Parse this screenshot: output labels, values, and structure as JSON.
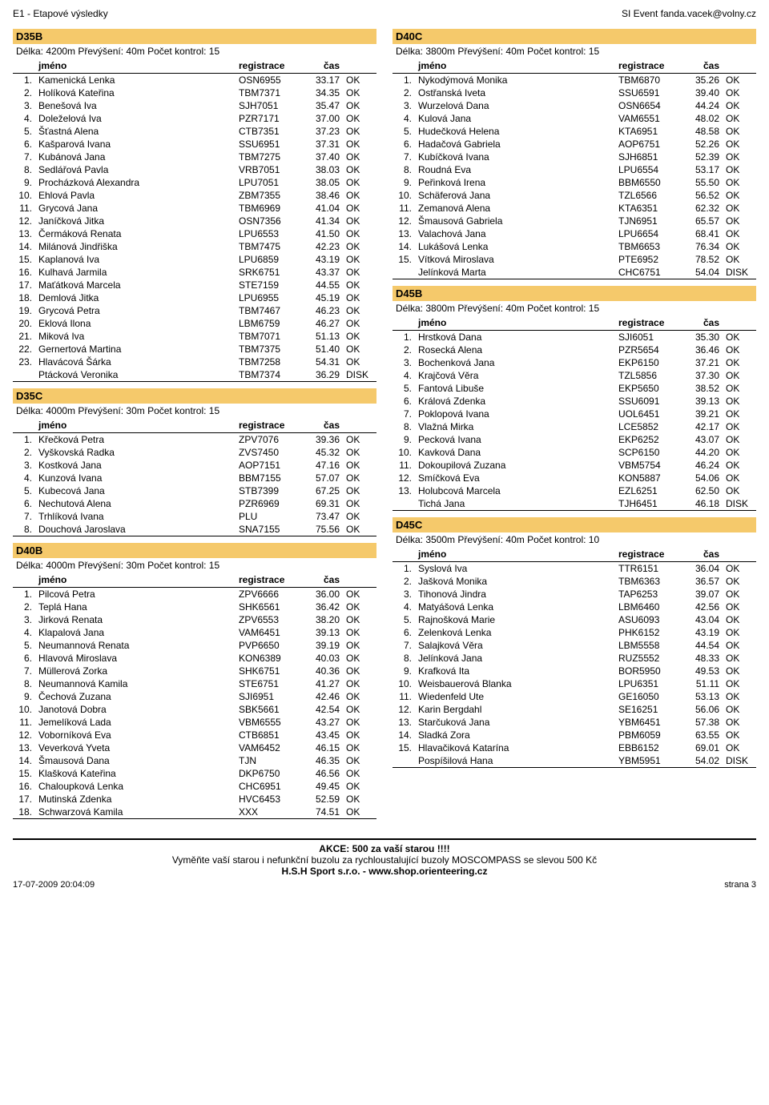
{
  "header": {
    "left": "E1 - Etapové výsledky",
    "right": "SI Event fanda.vacek@volny.cz"
  },
  "labels": {
    "name": "jméno",
    "reg": "registrace",
    "time": "čas"
  },
  "footer": {
    "line1": "AKCE: 500 za vaší starou !!!!",
    "line2": "Vyměňte vaší starou i nefunkční buzolu za rychloustalující buzoly MOSCOMPASS se slevou 500 Kč",
    "line3": "H.S.H Sport s.r.o. - www.shop.orienteering.cz",
    "stamp": "17-07-2009 20:04:09",
    "page": "strana 3"
  },
  "left_categories": [
    {
      "code": "D35B",
      "sub": "Délka: 4200m Převýšení: 40m Počet kontrol: 15",
      "rows": [
        {
          "r": "1.",
          "n": "Kamenická Lenka",
          "g": "OSN6955",
          "t": "33.17",
          "s": "OK"
        },
        {
          "r": "2.",
          "n": "Holíková Kateřina",
          "g": "TBM7371",
          "t": "34.35",
          "s": "OK"
        },
        {
          "r": "3.",
          "n": "Benešová Iva",
          "g": "SJH7051",
          "t": "35.47",
          "s": "OK"
        },
        {
          "r": "4.",
          "n": "Doleželová Iva",
          "g": "PZR7171",
          "t": "37.00",
          "s": "OK"
        },
        {
          "r": "5.",
          "n": "Šťastná Alena",
          "g": "CTB7351",
          "t": "37.23",
          "s": "OK"
        },
        {
          "r": "6.",
          "n": "Kašparová Ivana",
          "g": "SSU6951",
          "t": "37.31",
          "s": "OK"
        },
        {
          "r": "7.",
          "n": "Kubánová Jana",
          "g": "TBM7275",
          "t": "37.40",
          "s": "OK"
        },
        {
          "r": "8.",
          "n": "Sedlářová Pavla",
          "g": "VRB7051",
          "t": "38.03",
          "s": "OK"
        },
        {
          "r": "9.",
          "n": "Procházková Alexandra",
          "g": "LPU7051",
          "t": "38.05",
          "s": "OK"
        },
        {
          "r": "10.",
          "n": "Ehlová Pavla",
          "g": "ZBM7355",
          "t": "38.46",
          "s": "OK"
        },
        {
          "r": "11.",
          "n": "Grycová Jana",
          "g": "TBM6969",
          "t": "41.04",
          "s": "OK"
        },
        {
          "r": "12.",
          "n": "Janíčková Jitka",
          "g": "OSN7356",
          "t": "41.34",
          "s": "OK"
        },
        {
          "r": "13.",
          "n": "Čermáková Renata",
          "g": "LPU6553",
          "t": "41.50",
          "s": "OK"
        },
        {
          "r": "14.",
          "n": "Milánová Jindřiška",
          "g": "TBM7475",
          "t": "42.23",
          "s": "OK"
        },
        {
          "r": "15.",
          "n": "Kaplanová Iva",
          "g": "LPU6859",
          "t": "43.19",
          "s": "OK"
        },
        {
          "r": "16.",
          "n": "Kulhavá Jarmila",
          "g": "SRK6751",
          "t": "43.37",
          "s": "OK"
        },
        {
          "r": "17.",
          "n": "Maťátková Marcela",
          "g": "STE7159",
          "t": "44.55",
          "s": "OK"
        },
        {
          "r": "18.",
          "n": "Demlová Jitka",
          "g": "LPU6955",
          "t": "45.19",
          "s": "OK"
        },
        {
          "r": "19.",
          "n": "Grycová Petra",
          "g": "TBM7467",
          "t": "46.23",
          "s": "OK"
        },
        {
          "r": "20.",
          "n": "Eklová Ilona",
          "g": "LBM6759",
          "t": "46.27",
          "s": "OK"
        },
        {
          "r": "21.",
          "n": "Miková Iva",
          "g": "TBM7071",
          "t": "51.13",
          "s": "OK"
        },
        {
          "r": "22.",
          "n": "Gernertová Martina",
          "g": "TBM7375",
          "t": "51.40",
          "s": "OK"
        },
        {
          "r": "23.",
          "n": "Hlavácová Šárka",
          "g": "TBM7258",
          "t": "54.31",
          "s": "OK"
        },
        {
          "r": "",
          "n": "Ptácková Veronika",
          "g": "TBM7374",
          "t": "36.29",
          "s": "DISK"
        }
      ]
    },
    {
      "code": "D35C",
      "sub": "Délka: 4000m Převýšení: 30m Počet kontrol: 15",
      "rows": [
        {
          "r": "1.",
          "n": "Křečková Petra",
          "g": "ZPV7076",
          "t": "39.36",
          "s": "OK"
        },
        {
          "r": "2.",
          "n": "Vyškovská Radka",
          "g": "ZVS7450",
          "t": "45.32",
          "s": "OK"
        },
        {
          "r": "3.",
          "n": "Kostková Jana",
          "g": "AOP7151",
          "t": "47.16",
          "s": "OK"
        },
        {
          "r": "4.",
          "n": "Kunzová Ivana",
          "g": "BBM7155",
          "t": "57.07",
          "s": "OK"
        },
        {
          "r": "5.",
          "n": "Kubecová Jana",
          "g": "STB7399",
          "t": "67.25",
          "s": "OK"
        },
        {
          "r": "6.",
          "n": "Nechutová Alena",
          "g": "PZR6969",
          "t": "69.31",
          "s": "OK"
        },
        {
          "r": "7.",
          "n": "Trhlíková Ivana",
          "g": "PLU",
          "t": "73.47",
          "s": "OK"
        },
        {
          "r": "8.",
          "n": "Douchová Jaroslava",
          "g": "SNA7155",
          "t": "75.56",
          "s": "OK"
        }
      ]
    },
    {
      "code": "D40B",
      "sub": "Délka: 4000m Převýšení: 30m Počet kontrol: 15",
      "rows": [
        {
          "r": "1.",
          "n": "Pilcová Petra",
          "g": "ZPV6666",
          "t": "36.00",
          "s": "OK"
        },
        {
          "r": "2.",
          "n": "Teplá Hana",
          "g": "SHK6561",
          "t": "36.42",
          "s": "OK"
        },
        {
          "r": "3.",
          "n": "Jirková Renata",
          "g": "ZPV6553",
          "t": "38.20",
          "s": "OK"
        },
        {
          "r": "4.",
          "n": "Klapalová Jana",
          "g": "VAM6451",
          "t": "39.13",
          "s": "OK"
        },
        {
          "r": "5.",
          "n": "Neumannová Renata",
          "g": "PVP6650",
          "t": "39.19",
          "s": "OK"
        },
        {
          "r": "6.",
          "n": "Hlavová Miroslava",
          "g": "KON6389",
          "t": "40.03",
          "s": "OK"
        },
        {
          "r": "7.",
          "n": "Müllerová Zorka",
          "g": "SHK6751",
          "t": "40.36",
          "s": "OK"
        },
        {
          "r": "8.",
          "n": "Neumannová Kamila",
          "g": "STE6751",
          "t": "41.27",
          "s": "OK"
        },
        {
          "r": "9.",
          "n": "Čechová Zuzana",
          "g": "SJI6951",
          "t": "42.46",
          "s": "OK"
        },
        {
          "r": "10.",
          "n": "Janotová Dobra",
          "g": "SBK5661",
          "t": "42.54",
          "s": "OK"
        },
        {
          "r": "11.",
          "n": "Jemelíková Lada",
          "g": "VBM6555",
          "t": "43.27",
          "s": "OK"
        },
        {
          "r": "12.",
          "n": "Voborníková Eva",
          "g": "CTB6851",
          "t": "43.45",
          "s": "OK"
        },
        {
          "r": "13.",
          "n": "Veverková Yveta",
          "g": "VAM6452",
          "t": "46.15",
          "s": "OK"
        },
        {
          "r": "14.",
          "n": "Šmausová Dana",
          "g": "TJN",
          "t": "46.35",
          "s": "OK"
        },
        {
          "r": "15.",
          "n": "Klašková Kateřina",
          "g": "DKP6750",
          "t": "46.56",
          "s": "OK"
        },
        {
          "r": "16.",
          "n": "Chaloupková Lenka",
          "g": "CHC6951",
          "t": "49.45",
          "s": "OK"
        },
        {
          "r": "17.",
          "n": "Mutinská Zdenka",
          "g": "HVC6453",
          "t": "52.59",
          "s": "OK"
        },
        {
          "r": "18.",
          "n": "Schwarzová Kamila",
          "g": "XXX",
          "t": "74.51",
          "s": "OK"
        }
      ]
    }
  ],
  "right_categories": [
    {
      "code": "D40C",
      "sub": "Délka: 3800m Převýšení: 40m Počet kontrol: 15",
      "rows": [
        {
          "r": "1.",
          "n": "Nykodýmová Monika",
          "g": "TBM6870",
          "t": "35.26",
          "s": "OK"
        },
        {
          "r": "2.",
          "n": "Ostřanská Iveta",
          "g": "SSU6591",
          "t": "39.40",
          "s": "OK"
        },
        {
          "r": "3.",
          "n": "Wurzelová Dana",
          "g": "OSN6654",
          "t": "44.24",
          "s": "OK"
        },
        {
          "r": "4.",
          "n": "Kulová Jana",
          "g": "VAM6551",
          "t": "48.02",
          "s": "OK"
        },
        {
          "r": "5.",
          "n": "Hudečková Helena",
          "g": "KTA6951",
          "t": "48.58",
          "s": "OK"
        },
        {
          "r": "6.",
          "n": "Hadačová Gabriela",
          "g": "AOP6751",
          "t": "52.26",
          "s": "OK"
        },
        {
          "r": "7.",
          "n": "Kubíčková Ivana",
          "g": "SJH6851",
          "t": "52.39",
          "s": "OK"
        },
        {
          "r": "8.",
          "n": "Roudná Eva",
          "g": "LPU6554",
          "t": "53.17",
          "s": "OK"
        },
        {
          "r": "9.",
          "n": "Peřinková Irena",
          "g": "BBM6550",
          "t": "55.50",
          "s": "OK"
        },
        {
          "r": "10.",
          "n": "Schäferová Jana",
          "g": "TZL6566",
          "t": "56.52",
          "s": "OK"
        },
        {
          "r": "11.",
          "n": "Zemanová Alena",
          "g": "KTA6351",
          "t": "62.32",
          "s": "OK"
        },
        {
          "r": "12.",
          "n": "Šmausová Gabriela",
          "g": "TJN6951",
          "t": "65.57",
          "s": "OK"
        },
        {
          "r": "13.",
          "n": "Valachová Jana",
          "g": "LPU6654",
          "t": "68.41",
          "s": "OK"
        },
        {
          "r": "14.",
          "n": "Lukášová Lenka",
          "g": "TBM6653",
          "t": "76.34",
          "s": "OK"
        },
        {
          "r": "15.",
          "n": "Vítková Miroslava",
          "g": "PTE6952",
          "t": "78.52",
          "s": "OK"
        },
        {
          "r": "",
          "n": "Jelínková Marta",
          "g": "CHC6751",
          "t": "54.04",
          "s": "DISK"
        }
      ]
    },
    {
      "code": "D45B",
      "sub": "Délka: 3800m Převýšení: 40m Počet kontrol: 15",
      "rows": [
        {
          "r": "1.",
          "n": "Hrstková Dana",
          "g": "SJI6051",
          "t": "35.30",
          "s": "OK"
        },
        {
          "r": "2.",
          "n": "Rosecká  Alena",
          "g": "PZR5654",
          "t": "36.46",
          "s": "OK"
        },
        {
          "r": "3.",
          "n": "Bochenková Jana",
          "g": "EKP6150",
          "t": "37.21",
          "s": "OK"
        },
        {
          "r": "4.",
          "n": "Krajčová Věra",
          "g": "TZL5856",
          "t": "37.30",
          "s": "OK"
        },
        {
          "r": "5.",
          "n": "Fantová Libuše",
          "g": "EKP5650",
          "t": "38.52",
          "s": "OK"
        },
        {
          "r": "6.",
          "n": "Králová Zdenka",
          "g": "SSU6091",
          "t": "39.13",
          "s": "OK"
        },
        {
          "r": "7.",
          "n": "Poklopová Ivana",
          "g": "UOL6451",
          "t": "39.21",
          "s": "OK"
        },
        {
          "r": "8.",
          "n": "Vlažná Mirka",
          "g": "LCE5852",
          "t": "42.17",
          "s": "OK"
        },
        {
          "r": "9.",
          "n": "Pecková Ivana",
          "g": "EKP6252",
          "t": "43.07",
          "s": "OK"
        },
        {
          "r": "10.",
          "n": "Kavková Dana",
          "g": "SCP6150",
          "t": "44.20",
          "s": "OK"
        },
        {
          "r": "11.",
          "n": "Dokoupilová Zuzana",
          "g": "VBM5754",
          "t": "46.24",
          "s": "OK"
        },
        {
          "r": "12.",
          "n": "Smíčková Eva",
          "g": "KON5887",
          "t": "54.06",
          "s": "OK"
        },
        {
          "r": "13.",
          "n": "Holubcová Marcela",
          "g": "EZL6251",
          "t": "62.50",
          "s": "OK"
        },
        {
          "r": "",
          "n": "Tichá Jana",
          "g": "TJH6451",
          "t": "46.18",
          "s": "DISK"
        }
      ]
    },
    {
      "code": "D45C",
      "sub": "Délka: 3500m Převýšení: 40m Počet kontrol: 10",
      "rows": [
        {
          "r": "1.",
          "n": "Syslová Iva",
          "g": "TTR6151",
          "t": "36.04",
          "s": "OK"
        },
        {
          "r": "2.",
          "n": "Jašková Monika",
          "g": "TBM6363",
          "t": "36.57",
          "s": "OK"
        },
        {
          "r": "3.",
          "n": "Tihonová Jindra",
          "g": "TAP6253",
          "t": "39.07",
          "s": "OK"
        },
        {
          "r": "4.",
          "n": "Matyášová Lenka",
          "g": "LBM6460",
          "t": "42.56",
          "s": "OK"
        },
        {
          "r": "5.",
          "n": "Rajnošková Marie",
          "g": "ASU6093",
          "t": "43.04",
          "s": "OK"
        },
        {
          "r": "6.",
          "n": "Zelenková  Lenka",
          "g": "PHK6152",
          "t": "43.19",
          "s": "OK"
        },
        {
          "r": "7.",
          "n": "Salajková Věra",
          "g": "LBM5558",
          "t": "44.54",
          "s": "OK"
        },
        {
          "r": "8.",
          "n": "Jelínková Jana",
          "g": "RUZ5552",
          "t": "48.33",
          "s": "OK"
        },
        {
          "r": "9.",
          "n": "Krafková Ita",
          "g": "BOR5950",
          "t": "49.53",
          "s": "OK"
        },
        {
          "r": "10.",
          "n": "Weisbauerová Blanka",
          "g": "LPU6351",
          "t": "51.11",
          "s": "OK"
        },
        {
          "r": "11.",
          "n": "Wiedenfeld Ute",
          "g": "GE16050",
          "t": "53.13",
          "s": "OK"
        },
        {
          "r": "12.",
          "n": "Karin Bergdahl",
          "g": "SE16251",
          "t": "56.06",
          "s": "OK"
        },
        {
          "r": "13.",
          "n": "Starčuková Jana",
          "g": "YBM6451",
          "t": "57.38",
          "s": "OK"
        },
        {
          "r": "14.",
          "n": "Sladká Zora",
          "g": "PBM6059",
          "t": "63.55",
          "s": "OK"
        },
        {
          "r": "15.",
          "n": "Hlavačiková Katarína",
          "g": "EBB6152",
          "t": "69.01",
          "s": "OK"
        },
        {
          "r": "",
          "n": "Pospíšilová Hana",
          "g": "YBM5951",
          "t": "54.02",
          "s": "DISK"
        }
      ]
    }
  ]
}
